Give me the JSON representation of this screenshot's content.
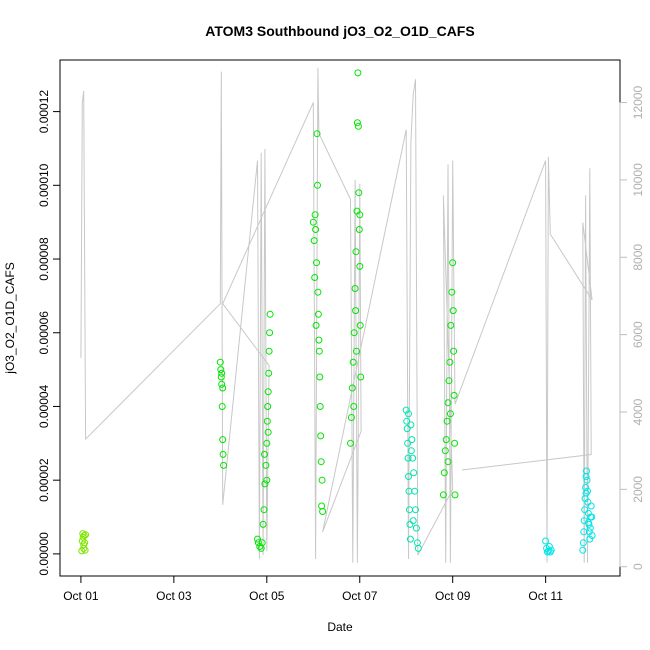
{
  "chart_data": {
    "type": "scatter",
    "title": "ATOM3 Southbound jO3_O2_O1D_CAFS",
    "xlabel": "Date",
    "ylabel": "jO3_O2_O1D_CAFS",
    "x_ticks": [
      "Oct 01",
      "Oct 03",
      "Oct 05",
      "Oct 07",
      "Oct 09",
      "Oct 11"
    ],
    "x_tick_days": [
      1,
      3,
      5,
      7,
      9,
      11
    ],
    "xlim": [
      0.55,
      12.6
    ],
    "ylim": [
      -6e-06,
      0.000134
    ],
    "y_ticks": [
      0.0,
      2e-05,
      4e-05,
      6e-05,
      8e-05,
      0.0001,
      0.00012
    ],
    "y_tick_labels": [
      "0.00000",
      "0.00002",
      "0.00004",
      "0.00006",
      "0.00008",
      "0.00010",
      "0.00012"
    ],
    "right_axis": {
      "color": "#bebebe",
      "ylim": [
        -240,
        13100
      ],
      "ticks": [
        0,
        2000,
        4000,
        6000,
        8000,
        10000,
        12000
      ],
      "tick_labels": [
        "0",
        "2000",
        "4000",
        "6000",
        "8000",
        "10000",
        "12000"
      ]
    },
    "grid": false,
    "legend": "none",
    "colors": {
      "altitude_trace": "#c8c8c8",
      "green": "#00e600",
      "lime": "#7fe600",
      "cyan": "#00e6e6"
    },
    "altitude_trace": [
      [
        1.0,
        5400
      ],
      [
        1.03,
        12000
      ],
      [
        1.06,
        12300
      ],
      [
        1.1,
        3300
      ],
      [
        4.0,
        6800
      ],
      [
        4.02,
        12800
      ],
      [
        4.05,
        1600
      ],
      [
        4.8,
        10500
      ],
      [
        4.84,
        200
      ],
      [
        4.88,
        10700
      ],
      [
        4.92,
        300
      ],
      [
        4.96,
        10800
      ],
      [
        5.0,
        400
      ],
      [
        5.05,
        5200
      ],
      [
        4.05,
        6800
      ],
      [
        6.0,
        12000
      ],
      [
        6.05,
        200
      ],
      [
        6.1,
        12900
      ],
      [
        6.12,
        11200
      ],
      [
        6.8,
        9500
      ],
      [
        6.85,
        100
      ],
      [
        6.9,
        10000
      ],
      [
        6.95,
        100
      ],
      [
        7.0,
        9900
      ],
      [
        7.03,
        3500
      ],
      [
        6.2,
        900
      ],
      [
        8.0,
        11300
      ],
      [
        8.05,
        200
      ],
      [
        8.1,
        11000
      ],
      [
        8.15,
        12200
      ],
      [
        8.2,
        12600
      ],
      [
        8.25,
        300
      ],
      [
        9.0,
        2000
      ],
      [
        8.8,
        9600
      ],
      [
        8.85,
        100
      ],
      [
        8.9,
        10400
      ],
      [
        8.95,
        100
      ],
      [
        9.0,
        10500
      ],
      [
        9.05,
        4200
      ],
      [
        11.0,
        10500
      ],
      [
        11.03,
        100
      ],
      [
        11.06,
        10600
      ],
      [
        11.1,
        8600
      ],
      [
        12.0,
        6900
      ],
      [
        11.8,
        8900
      ],
      [
        11.83,
        100
      ],
      [
        11.86,
        9600
      ],
      [
        11.9,
        100
      ],
      [
        11.95,
        10300
      ],
      [
        11.98,
        2900
      ],
      [
        9.2,
        2500
      ]
    ],
    "series": [
      {
        "color": "#7fe600",
        "points": [
          [
            1.02,
            8e-07
          ],
          [
            1.03,
            3.5e-06
          ],
          [
            1.04,
            5.5e-06
          ],
          [
            1.05,
            4.5e-06
          ],
          [
            1.06,
            2.5e-06
          ],
          [
            1.07,
            5e-06
          ],
          [
            1.08,
            3e-06
          ],
          [
            1.09,
            1e-06
          ],
          [
            1.1,
            5.2e-06
          ],
          [
            1.06,
            1.5e-06
          ]
        ]
      },
      {
        "color": "#00e600",
        "points": [
          [
            4.0,
            5.2e-05
          ],
          [
            4.01,
            5e-05
          ],
          [
            4.02,
            4.8e-05
          ],
          [
            4.03,
            4.6e-05
          ],
          [
            4.04,
            4e-05
          ],
          [
            4.05,
            3.1e-05
          ],
          [
            4.06,
            2.7e-05
          ],
          [
            4.07,
            2.4e-05
          ],
          [
            4.03,
            4.9e-05
          ],
          [
            4.05,
            4.5e-05
          ],
          [
            4.8,
            4e-06
          ],
          [
            4.82,
            3e-06
          ],
          [
            4.85,
            2e-06
          ],
          [
            4.88,
            1.5e-06
          ],
          [
            4.9,
            3e-06
          ],
          [
            4.92,
            8e-06
          ],
          [
            4.94,
            1.2e-05
          ],
          [
            4.96,
            1.9e-05
          ],
          [
            4.98,
            2.4e-05
          ],
          [
            5.0,
            3e-05
          ],
          [
            5.01,
            3.6e-05
          ],
          [
            5.02,
            4e-05
          ],
          [
            5.03,
            4.4e-05
          ],
          [
            5.04,
            4.9e-05
          ],
          [
            5.05,
            5.5e-05
          ],
          [
            5.06,
            6e-05
          ],
          [
            5.07,
            6.5e-05
          ],
          [
            4.95,
            2.7e-05
          ],
          [
            5.0,
            2e-05
          ],
          [
            5.03,
            3.3e-05
          ],
          [
            6.0,
            9e-05
          ],
          [
            6.02,
            8.5e-05
          ],
          [
            6.04,
            9.2e-05
          ],
          [
            6.05,
            8.8e-05
          ],
          [
            6.07,
            7.9e-05
          ],
          [
            6.08,
            0.000114
          ],
          [
            6.09,
            0.0001
          ],
          [
            6.1,
            7.1e-05
          ],
          [
            6.11,
            6.5e-05
          ],
          [
            6.12,
            5.8e-05
          ],
          [
            6.14,
            4.8e-05
          ],
          [
            6.15,
            4e-05
          ],
          [
            6.16,
            3.2e-05
          ],
          [
            6.17,
            2.5e-05
          ],
          [
            6.18,
            1.3e-05
          ],
          [
            6.2,
            1.15e-05
          ],
          [
            6.06,
            6.2e-05
          ],
          [
            6.03,
            7.5e-05
          ],
          [
            6.13,
            5.5e-05
          ],
          [
            6.19,
            2e-05
          ],
          [
            6.8,
            3e-05
          ],
          [
            6.82,
            3.7e-05
          ],
          [
            6.84,
            4.5e-05
          ],
          [
            6.86,
            5.2e-05
          ],
          [
            6.88,
            6e-05
          ],
          [
            6.9,
            7.2e-05
          ],
          [
            6.92,
            8.2e-05
          ],
          [
            6.94,
            9.3e-05
          ],
          [
            6.95,
            0.000117
          ],
          [
            6.96,
            0.0001305
          ],
          [
            6.97,
            0.000116
          ],
          [
            6.98,
            9.8e-05
          ],
          [
            6.99,
            8.8e-05
          ],
          [
            7.0,
            7.8e-05
          ],
          [
            7.01,
            6.2e-05
          ],
          [
            7.02,
            4.8e-05
          ],
          [
            6.93,
            5.5e-05
          ],
          [
            6.87,
            4e-05
          ],
          [
            7.0,
            9.2e-05
          ],
          [
            6.91,
            6.6e-05
          ],
          [
            8.8,
            1.6e-05
          ],
          [
            8.82,
            2.2e-05
          ],
          [
            8.84,
            2.8e-05
          ],
          [
            8.86,
            3.1e-05
          ],
          [
            8.88,
            3.6e-05
          ],
          [
            8.9,
            4.1e-05
          ],
          [
            8.92,
            4.7e-05
          ],
          [
            8.94,
            5.2e-05
          ],
          [
            8.96,
            6.2e-05
          ],
          [
            8.98,
            7.1e-05
          ],
          [
            9.0,
            7.9e-05
          ],
          [
            9.01,
            6.6e-05
          ],
          [
            9.02,
            5.5e-05
          ],
          [
            9.03,
            4.3e-05
          ],
          [
            9.04,
            3e-05
          ],
          [
            9.05,
            1.6e-05
          ],
          [
            8.95,
            3.8e-05
          ],
          [
            8.9,
            2.5e-05
          ]
        ]
      },
      {
        "color": "#00e6b0",
        "points": [
          [
            8.0,
            3.9e-05
          ],
          [
            8.01,
            3.6e-05
          ],
          [
            8.02,
            3.4e-05
          ],
          [
            8.03,
            3e-05
          ],
          [
            8.04,
            2.6e-05
          ],
          [
            8.05,
            2.1e-05
          ],
          [
            8.06,
            1.7e-05
          ],
          [
            8.07,
            1.2e-05
          ],
          [
            8.08,
            8e-06
          ],
          [
            8.09,
            4e-06
          ],
          [
            8.1,
            3.5e-05
          ],
          [
            8.12,
            3.1e-05
          ],
          [
            8.14,
            2.6e-05
          ],
          [
            8.16,
            2.2e-05
          ],
          [
            8.18,
            1.7e-05
          ],
          [
            8.2,
            1.2e-05
          ],
          [
            8.22,
            7e-06
          ],
          [
            8.24,
            3e-06
          ],
          [
            8.26,
            1.5e-06
          ],
          [
            8.15,
            9e-06
          ],
          [
            8.05,
            3.8e-05
          ],
          [
            8.11,
            2.8e-05
          ]
        ]
      },
      {
        "color": "#00e6e6",
        "points": [
          [
            11.0,
            3.5e-06
          ],
          [
            11.02,
            1.5e-06
          ],
          [
            11.04,
            5e-07
          ],
          [
            11.06,
            8e-07
          ],
          [
            11.08,
            2e-06
          ],
          [
            11.1,
            5e-07
          ],
          [
            11.12,
            1e-06
          ],
          [
            11.8,
            1e-06
          ],
          [
            11.81,
            3e-06
          ],
          [
            11.82,
            6e-06
          ],
          [
            11.83,
            9e-06
          ],
          [
            11.84,
            1.2e-05
          ],
          [
            11.85,
            1.5e-05
          ],
          [
            11.86,
            1.8e-05
          ],
          [
            11.87,
            2.1e-05
          ],
          [
            11.88,
            2.25e-05
          ],
          [
            11.89,
            2e-05
          ],
          [
            11.9,
            1.7e-05
          ],
          [
            11.91,
            1.4e-05
          ],
          [
            11.92,
            1.1e-05
          ],
          [
            11.93,
            8e-06
          ],
          [
            11.94,
            6e-06
          ],
          [
            11.95,
            4e-06
          ],
          [
            11.96,
            7e-06
          ],
          [
            11.97,
            1e-05
          ],
          [
            11.98,
            1.3e-05
          ],
          [
            11.99,
            1e-05
          ],
          [
            12.0,
            5e-06
          ],
          [
            11.87,
            1.65e-05
          ],
          [
            11.92,
            8.5e-06
          ]
        ]
      }
    ]
  }
}
